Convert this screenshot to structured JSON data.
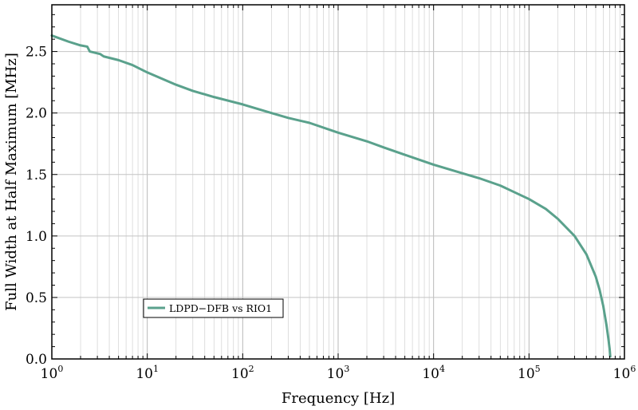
{
  "chart_data": {
    "type": "line",
    "xscale": "log",
    "xlim": [
      1,
      1000000
    ],
    "ylim": [
      0.0,
      2.88
    ],
    "xlabel": "Frequency [Hz]",
    "ylabel": "Full Width at Half Maximum [MHz]",
    "grid": true,
    "legend_position": "lower-left",
    "x_ticks": [
      {
        "base": "10",
        "exp": "0"
      },
      {
        "base": "10",
        "exp": "1"
      },
      {
        "base": "10",
        "exp": "2"
      },
      {
        "base": "10",
        "exp": "3"
      },
      {
        "base": "10",
        "exp": "4"
      },
      {
        "base": "10",
        "exp": "5"
      },
      {
        "base": "10",
        "exp": "6"
      }
    ],
    "y_ticks": [
      "0.0",
      "0.5",
      "1.0",
      "1.5",
      "2.0",
      "2.5"
    ],
    "series": [
      {
        "name": "LDPD−DFB vs RIO1",
        "color": "#5aa18c",
        "x": [
          1,
          1.5,
          2,
          2.35,
          2.5,
          3.2,
          3.5,
          5,
          7,
          10,
          20,
          30,
          50,
          100,
          200,
          300,
          500,
          1000,
          2000,
          3000,
          5000,
          10000,
          20000,
          30000,
          50000,
          100000,
          150000,
          200000,
          300000,
          400000,
          500000,
          550000,
          600000,
          650000,
          680000,
          700000,
          710000
        ],
        "y": [
          2.63,
          2.58,
          2.55,
          2.54,
          2.5,
          2.48,
          2.46,
          2.43,
          2.39,
          2.33,
          2.23,
          2.18,
          2.13,
          2.07,
          2.0,
          1.96,
          1.92,
          1.84,
          1.77,
          1.72,
          1.66,
          1.58,
          1.51,
          1.47,
          1.41,
          1.3,
          1.22,
          1.14,
          1.0,
          0.85,
          0.67,
          0.56,
          0.43,
          0.27,
          0.16,
          0.08,
          0.02
        ]
      }
    ]
  }
}
